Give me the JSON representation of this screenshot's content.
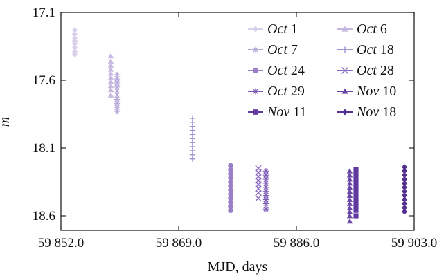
{
  "chart_data": {
    "type": "scatter",
    "title": "",
    "xlabel": "MJD, days",
    "ylabel": "m",
    "xlim": [
      59852.0,
      59903.0
    ],
    "ylim": [
      17.1,
      18.7
    ],
    "y_inverted": true,
    "x_ticks": [
      59852.0,
      59869.0,
      59886.0,
      59903.0
    ],
    "x_tick_labels": [
      "59 852.0",
      "59 869.0",
      "59 886.0",
      "59 903.0"
    ],
    "y_ticks": [
      17.1,
      17.6,
      18.1,
      18.6
    ],
    "y_tick_labels": [
      "17.1",
      "17.6",
      "18.1",
      "18.6"
    ],
    "grid": false,
    "legend_position": "top-right",
    "series": [
      {
        "name": "Oct 1",
        "label_month": "Oct",
        "label_day": "1",
        "marker": "diamond",
        "color": "#d8d0ea",
        "x": [
          59854.0,
          59854.0,
          59854.0,
          59854.0,
          59854.0,
          59854.0,
          59854.0,
          59854.0
        ],
        "y": [
          17.23,
          17.26,
          17.29,
          17.31,
          17.33,
          17.36,
          17.39,
          17.41
        ]
      },
      {
        "name": "Oct 6",
        "label_month": "Oct",
        "label_day": "6",
        "marker": "triangle",
        "color": "#c5b9e0",
        "x": [
          59859.2,
          59859.2,
          59859.2,
          59859.2,
          59859.2,
          59859.2,
          59859.2,
          59859.2,
          59859.2,
          59859.2
        ],
        "y": [
          17.42,
          17.46,
          17.49,
          17.52,
          17.55,
          17.58,
          17.61,
          17.64,
          17.67,
          17.71
        ]
      },
      {
        "name": "Oct 7",
        "label_month": "Oct",
        "label_day": "7",
        "marker": "star",
        "color": "#b4a6d8",
        "x": [
          59860.1,
          59860.1,
          59860.1,
          59860.1,
          59860.1,
          59860.1,
          59860.1,
          59860.1,
          59860.1,
          59860.1
        ],
        "y": [
          17.56,
          17.59,
          17.62,
          17.65,
          17.68,
          17.71,
          17.74,
          17.77,
          17.8,
          17.83
        ]
      },
      {
        "name": "Oct 18",
        "label_month": "Oct",
        "label_day": "18",
        "marker": "plus",
        "color": "#a090cf",
        "x": [
          59871.0,
          59871.0,
          59871.0,
          59871.0,
          59871.0,
          59871.0,
          59871.0,
          59871.0,
          59871.0,
          59871.0,
          59871.0
        ],
        "y": [
          17.88,
          17.91,
          17.94,
          17.97,
          18.0,
          18.03,
          18.06,
          18.09,
          18.12,
          18.15,
          18.18
        ]
      },
      {
        "name": "Oct 24",
        "label_month": "Oct",
        "label_day": "24",
        "marker": "circle",
        "color": "#9a7fc8",
        "x": [
          59876.5,
          59876.5,
          59876.5,
          59876.5,
          59876.5,
          59876.5,
          59876.5,
          59876.5,
          59876.5,
          59876.5,
          59876.5,
          59876.5
        ],
        "y": [
          18.23,
          18.26,
          18.29,
          18.32,
          18.35,
          18.38,
          18.41,
          18.44,
          18.47,
          18.5,
          18.53,
          18.56
        ]
      },
      {
        "name": "Oct 28",
        "label_month": "Oct",
        "label_day": "28",
        "marker": "x",
        "color": "#8b6bbf",
        "x": [
          59880.5,
          59880.5,
          59880.5,
          59880.5,
          59880.5,
          59880.5,
          59880.5,
          59880.5
        ],
        "y": [
          18.25,
          18.28,
          18.31,
          18.34,
          18.37,
          18.4,
          18.43,
          18.47
        ]
      },
      {
        "name": "Oct 29",
        "label_month": "Oct",
        "label_day": "29",
        "marker": "star",
        "color": "#7f5db7",
        "x": [
          59881.6,
          59881.6,
          59881.6,
          59881.6,
          59881.6,
          59881.6,
          59881.6,
          59881.6,
          59881.6,
          59881.6
        ],
        "y": [
          18.27,
          18.3,
          18.33,
          18.36,
          18.39,
          18.42,
          18.45,
          18.48,
          18.51,
          18.55
        ]
      },
      {
        "name": "Nov 10",
        "label_month": "Nov",
        "label_day": "10",
        "marker": "triangle",
        "color": "#6a45a8",
        "x": [
          59893.7,
          59893.7,
          59893.7,
          59893.7,
          59893.7,
          59893.7,
          59893.7,
          59893.7,
          59893.7,
          59893.7,
          59893.7,
          59893.7,
          59893.7
        ],
        "y": [
          18.27,
          18.3,
          18.33,
          18.36,
          18.39,
          18.42,
          18.45,
          18.48,
          18.51,
          18.54,
          18.57,
          18.6,
          18.64
        ]
      },
      {
        "name": "Nov 11",
        "label_month": "Nov",
        "label_day": "11",
        "marker": "square",
        "color": "#5e399e",
        "x": [
          59894.6,
          59894.6,
          59894.6,
          59894.6,
          59894.6,
          59894.6,
          59894.6,
          59894.6,
          59894.6,
          59894.6,
          59894.6,
          59894.6
        ],
        "y": [
          18.26,
          18.29,
          18.32,
          18.35,
          18.38,
          18.41,
          18.44,
          18.47,
          18.5,
          18.53,
          18.56,
          18.6
        ]
      },
      {
        "name": "Nov 18",
        "label_month": "Nov",
        "label_day": "18",
        "marker": "diamond",
        "color": "#53308f",
        "x": [
          59901.6,
          59901.6,
          59901.6,
          59901.6,
          59901.6,
          59901.6,
          59901.6,
          59901.6,
          59901.6,
          59901.6,
          59901.6,
          59901.6
        ],
        "y": [
          18.24,
          18.27,
          18.3,
          18.33,
          18.36,
          18.39,
          18.42,
          18.45,
          18.48,
          18.51,
          18.54,
          18.57
        ]
      }
    ]
  }
}
